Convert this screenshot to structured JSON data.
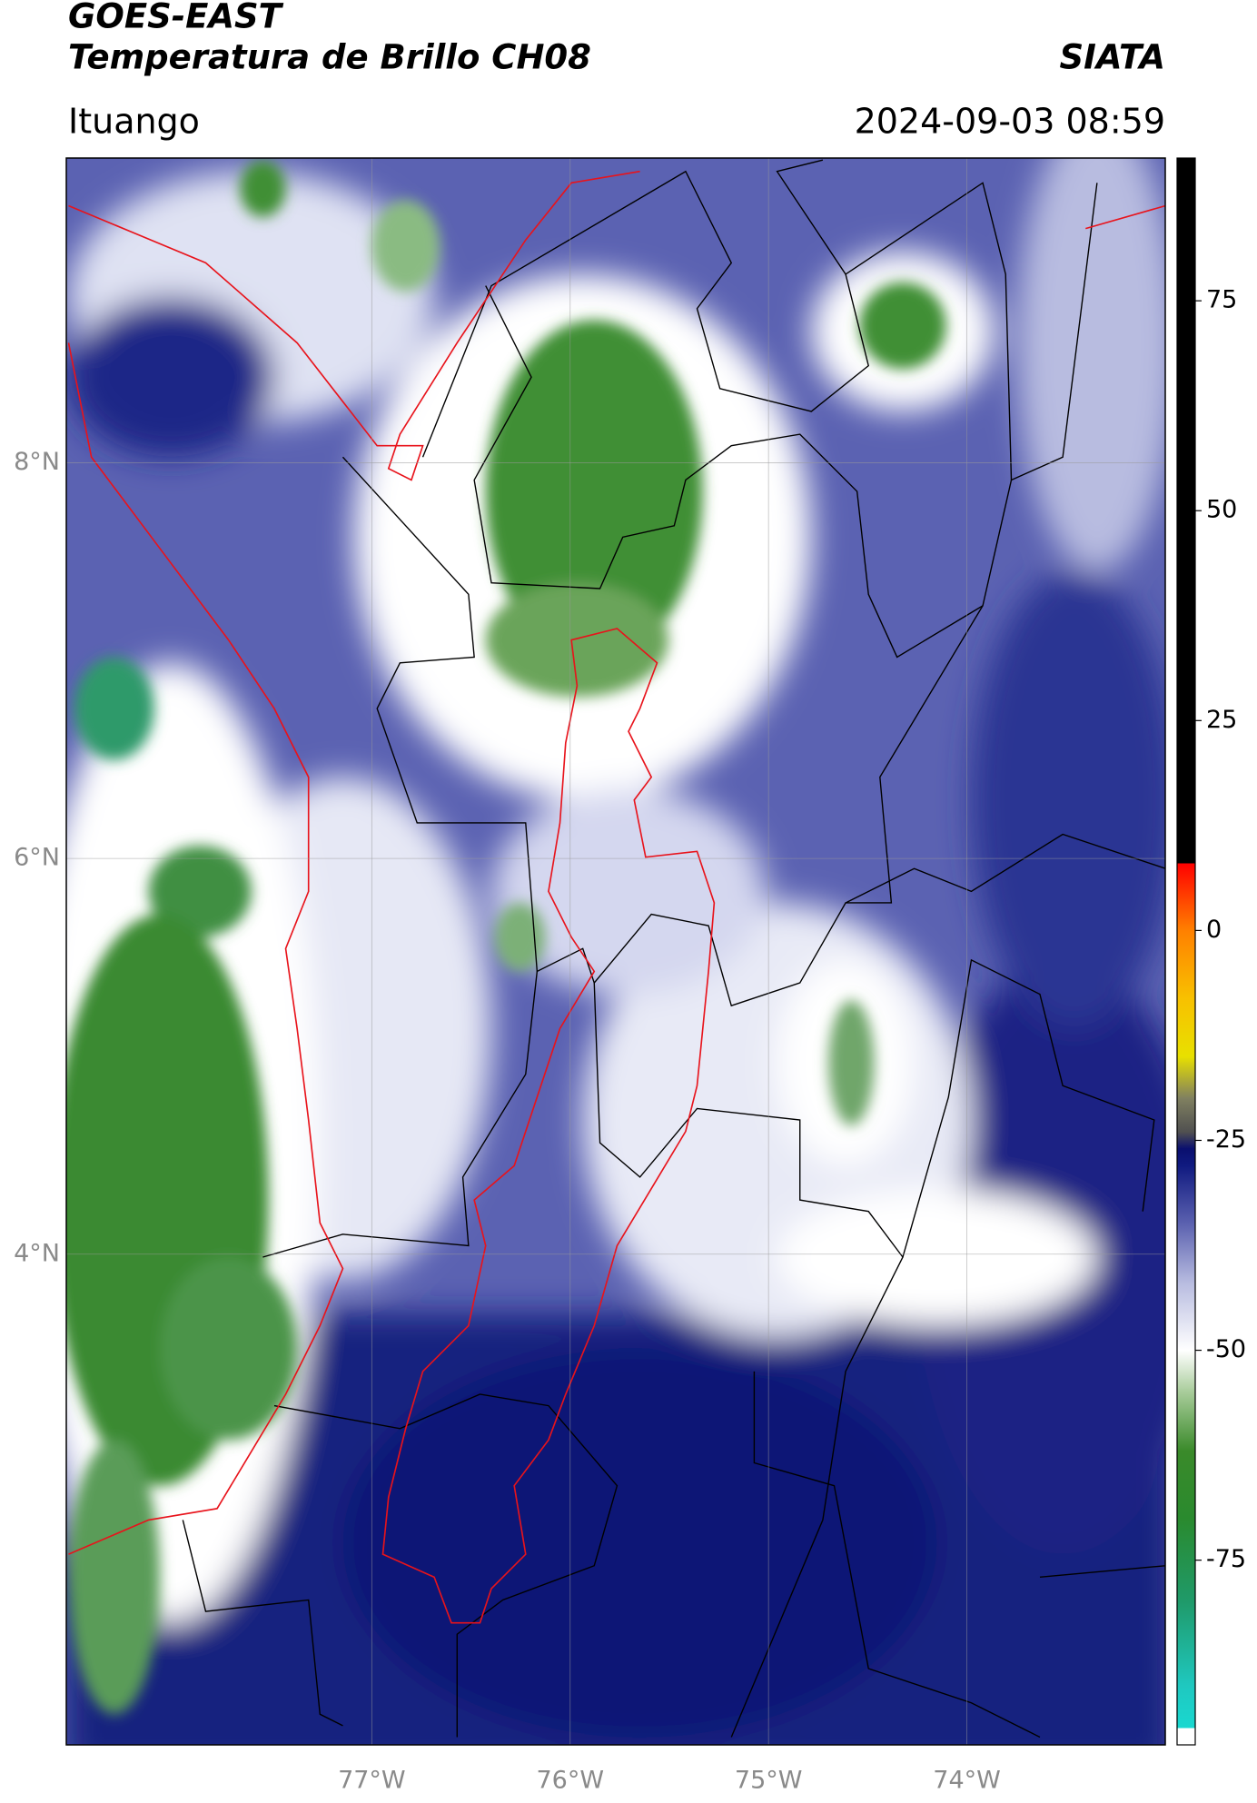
{
  "header": {
    "line1": "GOES-EAST",
    "line2": "Temperatura de Brillo CH08",
    "org": "SIATA",
    "location": "Ituango",
    "timestamp": "2024-09-03 08:59"
  },
  "map": {
    "xlim": [
      -78.54,
      -73.0
    ],
    "ylim": [
      1.52,
      9.54
    ],
    "grid": true,
    "xticks": [
      {
        "value": -77,
        "label": "77°W"
      },
      {
        "value": -76,
        "label": "76°W"
      },
      {
        "value": -75,
        "label": "75°W"
      },
      {
        "value": -74,
        "label": "74°W"
      }
    ],
    "yticks": [
      {
        "value": 4,
        "label": "4°N"
      },
      {
        "value": 6,
        "label": "6°N"
      },
      {
        "value": 8,
        "label": "8°N"
      }
    ]
  },
  "colorbar": {
    "lim": [
      -97,
      92
    ],
    "ticks": [
      -75,
      -50,
      -25,
      0,
      25,
      50,
      75
    ],
    "stops": [
      {
        "value": -97,
        "color": "#ffffff"
      },
      {
        "value": -95,
        "color": "#ffffff"
      },
      {
        "value": -95,
        "color": "#19d8d0"
      },
      {
        "value": -90,
        "color": "#1fc8c0"
      },
      {
        "value": -80,
        "color": "#1f9a6a"
      },
      {
        "value": -70,
        "color": "#2a8a2e"
      },
      {
        "value": -62,
        "color": "#3a8a2a"
      },
      {
        "value": -55,
        "color": "#a8cc9a"
      },
      {
        "value": -50,
        "color": "#ffffff"
      },
      {
        "value": -42,
        "color": "#b8bce0"
      },
      {
        "value": -35,
        "color": "#5c62b0"
      },
      {
        "value": -28,
        "color": "#101a80"
      },
      {
        "value": -26,
        "color": "#0a0f6e"
      },
      {
        "value": -24,
        "color": "#505050"
      },
      {
        "value": -20,
        "color": "#808060"
      },
      {
        "value": -15,
        "color": "#e8e000"
      },
      {
        "value": -8,
        "color": "#f8c000"
      },
      {
        "value": 0,
        "color": "#ff8000"
      },
      {
        "value": 8,
        "color": "#ff0000"
      },
      {
        "value": 8,
        "color": "#000000"
      },
      {
        "value": 92,
        "color": "#000000"
      }
    ]
  }
}
